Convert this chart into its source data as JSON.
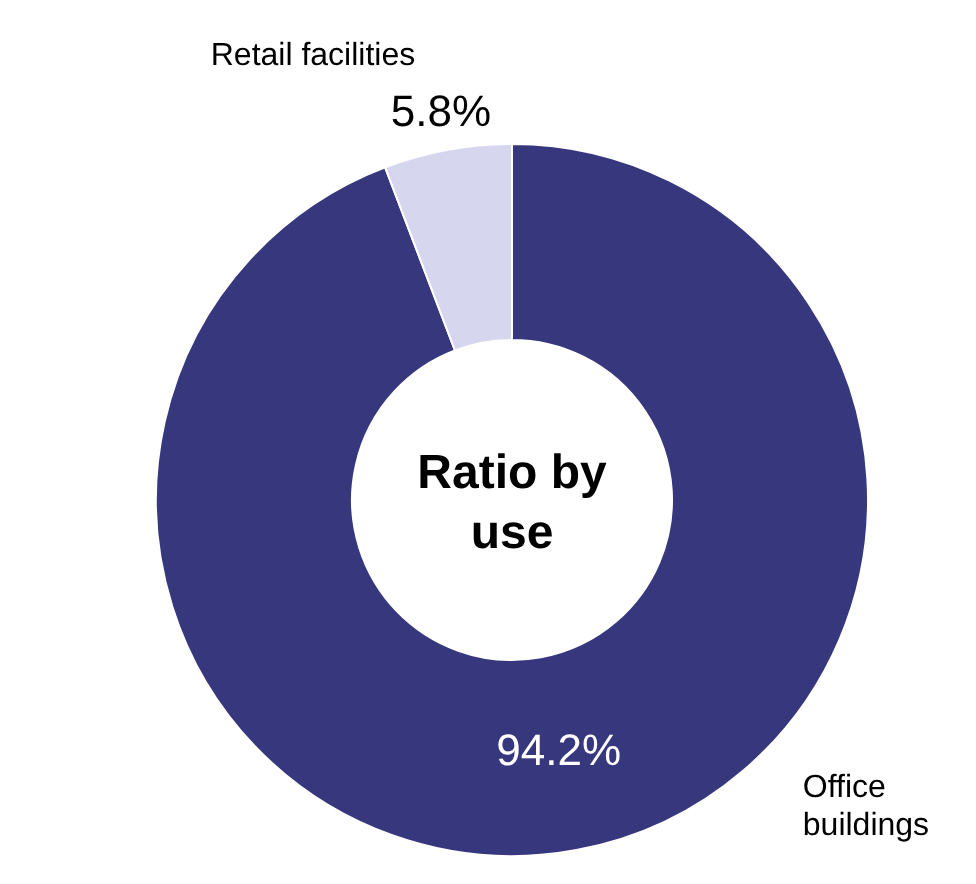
{
  "chart_data": {
    "type": "donut",
    "title": "Ratio by use",
    "categories": [
      "Office buildings",
      "Retail facilities"
    ],
    "values": [
      94.2,
      5.8
    ],
    "value_labels": [
      "94.2%",
      "5.8%"
    ],
    "colors": [
      "#36377d",
      "#d6d6ef"
    ]
  }
}
